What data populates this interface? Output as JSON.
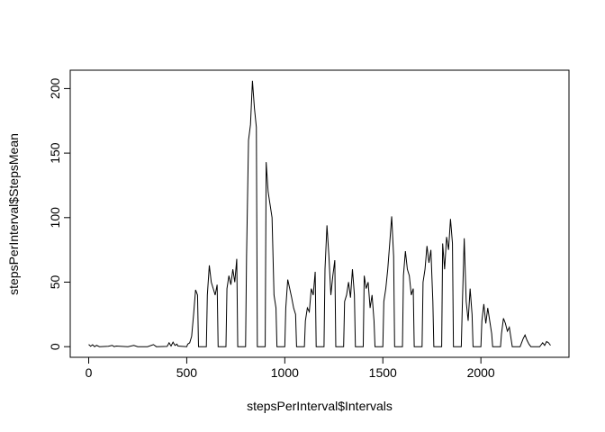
{
  "chart_data": {
    "type": "line",
    "x_label": "stepsPerInterval$Intervals",
    "y_label": "stepsPerInterval$StepsMean",
    "color": "#000000",
    "xlim": [
      -94.2,
      2449.2
    ],
    "ylim": [
      -8.24,
      214.24
    ],
    "xticks": [
      0,
      500,
      1000,
      1500,
      2000
    ],
    "yticks": [
      0,
      50,
      100,
      150,
      200
    ],
    "x": [
      0,
      10,
      20,
      30,
      40,
      55,
      100,
      120,
      130,
      140,
      200,
      230,
      250,
      300,
      330,
      345,
      400,
      410,
      420,
      430,
      440,
      450,
      455,
      500,
      505,
      515,
      525,
      535,
      545,
      555,
      560,
      600,
      605,
      615,
      625,
      635,
      645,
      655,
      660,
      700,
      705,
      715,
      725,
      735,
      745,
      755,
      760,
      800,
      805,
      815,
      825,
      835,
      845,
      855,
      860,
      900,
      905,
      915,
      925,
      935,
      945,
      955,
      960,
      1000,
      1005,
      1015,
      1025,
      1035,
      1045,
      1055,
      1060,
      1100,
      1105,
      1115,
      1125,
      1135,
      1145,
      1155,
      1160,
      1200,
      1205,
      1215,
      1225,
      1235,
      1245,
      1255,
      1260,
      1300,
      1305,
      1315,
      1325,
      1335,
      1345,
      1355,
      1360,
      1400,
      1405,
      1415,
      1425,
      1435,
      1445,
      1455,
      1460,
      1500,
      1505,
      1515,
      1525,
      1535,
      1545,
      1555,
      1560,
      1600,
      1605,
      1615,
      1625,
      1635,
      1645,
      1655,
      1660,
      1700,
      1705,
      1715,
      1725,
      1735,
      1745,
      1755,
      1760,
      1800,
      1805,
      1815,
      1825,
      1835,
      1845,
      1855,
      1860,
      1900,
      1905,
      1915,
      1925,
      1935,
      1945,
      1955,
      1960,
      2000,
      2005,
      2015,
      2025,
      2035,
      2045,
      2055,
      2060,
      2100,
      2105,
      2115,
      2125,
      2135,
      2145,
      2155,
      2160,
      2200,
      2205,
      2215,
      2225,
      2235,
      2245,
      2255,
      2260,
      2300,
      2305,
      2315,
      2325,
      2335,
      2345,
      2355
    ],
    "values": [
      1.7,
      0.3,
      1.5,
      0,
      1,
      0,
      0.3,
      1,
      0,
      0.5,
      0,
      1,
      0,
      0,
      1.6,
      0,
      0.2,
      3,
      0.5,
      3.5,
      1,
      2,
      0.5,
      0,
      2,
      3,
      8,
      25,
      44,
      40,
      0,
      0,
      40,
      63,
      50,
      45,
      40,
      48,
      0,
      0,
      45,
      55,
      48,
      60,
      50,
      68,
      0,
      0,
      70,
      160,
      172,
      206,
      185,
      170,
      0,
      0,
      143,
      120,
      110,
      100,
      40,
      30,
      0,
      0,
      30,
      52,
      45,
      38,
      30,
      25,
      0,
      0,
      20,
      30,
      27,
      45,
      40,
      58,
      0,
      0,
      60,
      94,
      70,
      40,
      55,
      67,
      0,
      0,
      35,
      40,
      50,
      38,
      60,
      40,
      0,
      0,
      55,
      45,
      50,
      30,
      40,
      20,
      0,
      0,
      35,
      45,
      60,
      80,
      101,
      70,
      0,
      0,
      55,
      74,
      60,
      55,
      40,
      45,
      0,
      0,
      50,
      60,
      78,
      65,
      75,
      35,
      0,
      0,
      80,
      60,
      85,
      75,
      99,
      80,
      0,
      0,
      30,
      84,
      35,
      20,
      45,
      25,
      0,
      0,
      20,
      33,
      18,
      30,
      20,
      10,
      0,
      0,
      10,
      22,
      18,
      12,
      15,
      5,
      0,
      0,
      2,
      6,
      9,
      5,
      2,
      0,
      0,
      0,
      1,
      3,
      1,
      4,
      3,
      1
    ]
  }
}
